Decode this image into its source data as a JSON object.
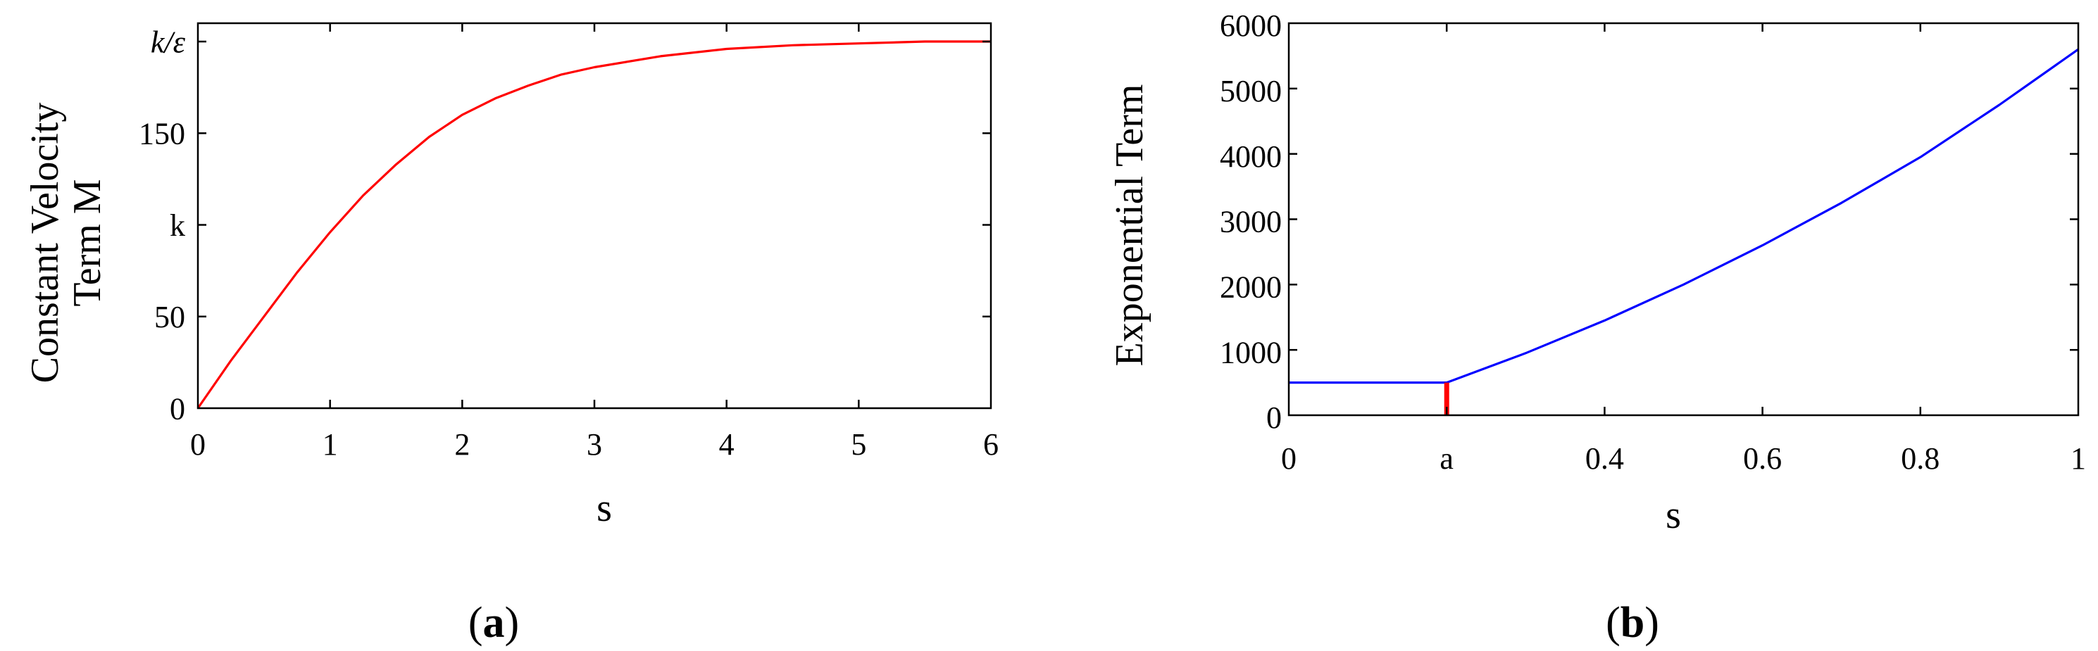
{
  "chart_data": [
    {
      "type": "line",
      "panel_label": "a",
      "xlabel": "s",
      "ylabel_lines": [
        "Constant Velocity",
        "Term M"
      ],
      "xlim": [
        0,
        6
      ],
      "ylim": [
        0,
        210
      ],
      "x_ticks": [
        0,
        1,
        2,
        3,
        4,
        5,
        6
      ],
      "y_ticks": [
        {
          "value": 0,
          "label": "0",
          "color": "#000000"
        },
        {
          "value": 50,
          "label": "50",
          "color": "#000000"
        },
        {
          "value": 100,
          "label": "k",
          "color": "#ff0000"
        },
        {
          "value": 150,
          "label": "150",
          "color": "#000000"
        },
        {
          "value": 200,
          "label": "k/ε",
          "color": "#000000",
          "italic": true
        }
      ],
      "grid": false,
      "series": [
        {
          "color": "#ff0000",
          "x": [
            0,
            0.25,
            0.5,
            0.75,
            1.0,
            1.25,
            1.5,
            1.75,
            2.0,
            2.25,
            2.5,
            2.75,
            3.0,
            3.5,
            4.0,
            4.5,
            5.0,
            5.5,
            6.0
          ],
          "y": [
            0,
            26,
            50,
            74,
            96,
            116,
            133,
            148,
            160,
            169,
            176,
            182,
            186,
            192,
            196,
            198,
            199,
            200,
            200
          ]
        }
      ]
    },
    {
      "type": "line",
      "panel_label": "b",
      "xlabel": "s",
      "ylabel": "Exponential Term",
      "xlim": [
        0,
        1
      ],
      "ylim": [
        0,
        6000
      ],
      "x_ticks": [
        {
          "value": 0,
          "label": "0",
          "color": "#000000"
        },
        {
          "value": 0.2,
          "label": "a",
          "color": "#ff0000"
        },
        {
          "value": 0.4,
          "label": "0.4",
          "color": "#000000"
        },
        {
          "value": 0.6,
          "label": "0.6",
          "color": "#000000"
        },
        {
          "value": 0.8,
          "label": "0.8",
          "color": "#000000"
        },
        {
          "value": 1.0,
          "label": "1",
          "color": "#000000"
        }
      ],
      "y_ticks": [
        0,
        1000,
        2000,
        3000,
        4000,
        5000,
        6000
      ],
      "grid": false,
      "marker": {
        "x": 0.2,
        "y_from": 0,
        "y_to": 500,
        "color": "#ff0000"
      },
      "series": [
        {
          "color": "#0000ff",
          "x": [
            0,
            0.2,
            0.3,
            0.4,
            0.5,
            0.6,
            0.7,
            0.8,
            0.9,
            1.0
          ],
          "y": [
            500,
            500,
            950,
            1450,
            2000,
            2600,
            3250,
            3950,
            4750,
            5600
          ]
        }
      ]
    }
  ]
}
